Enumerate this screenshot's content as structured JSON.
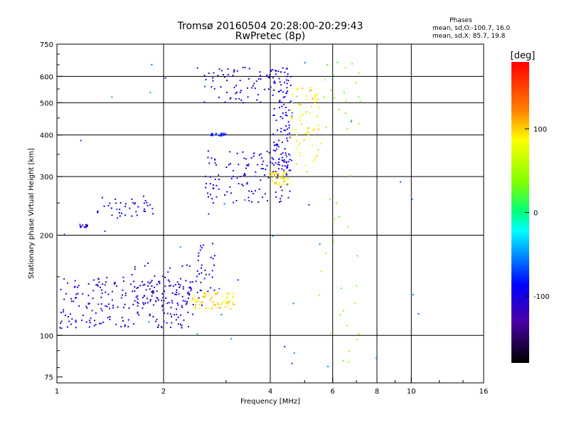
{
  "chart_data": {
    "type": "scatter",
    "title": "Tromsø 20160504 20:28:00-20:29:43",
    "subtitle": "RwPretec (8p)",
    "xlabel": "Frequency [MHz]",
    "ylabel": "Stationary phase Virtual Height [km]",
    "x_scale": "log",
    "y_scale": "log",
    "xlim": [
      1,
      16
    ],
    "ylim": [
      72,
      750
    ],
    "x_ticks": [
      {
        "v": 1,
        "label": "1"
      },
      {
        "v": 2,
        "label": "2"
      },
      {
        "v": 4,
        "label": "4"
      },
      {
        "v": 6,
        "label": "6"
      },
      {
        "v": 8,
        "label": "8"
      },
      {
        "v": 10,
        "label": "10"
      },
      {
        "v": 16,
        "label": "16"
      }
    ],
    "x_grid": [
      2,
      4,
      6,
      8,
      10
    ],
    "y_ticks": [
      {
        "v": 75,
        "label": "75"
      },
      {
        "v": 100,
        "label": "100"
      },
      {
        "v": 200,
        "label": "200"
      },
      {
        "v": 300,
        "label": "300"
      },
      {
        "v": 400,
        "label": "400"
      },
      {
        "v": 500,
        "label": "500"
      },
      {
        "v": 600,
        "label": "600"
      },
      {
        "v": 750,
        "label": "750"
      }
    ],
    "y_grid": [
      100,
      200,
      300,
      400,
      500,
      600
    ],
    "grid": true,
    "phases_legend": {
      "heading": "Phases",
      "line_o": "mean, sd,O:-100.7, 16.0",
      "line_x": "mean, sd,X:  85.7, 19.8"
    },
    "colorbar": {
      "label": "[deg]",
      "min": -180,
      "max": 180,
      "ticks": [
        {
          "v": 100,
          "label": "100"
        },
        {
          "v": 0,
          "label": "0"
        },
        {
          "v": -100,
          "label": "-100"
        }
      ]
    },
    "groups": [
      {
        "f_range": [
          1.15,
          1.22
        ],
        "h_range": [
          210,
          216
        ],
        "phase": -110,
        "n": 14
      },
      {
        "f_range": [
          1.3,
          1.9
        ],
        "h_range": [
          225,
          262
        ],
        "phase": -105,
        "n": 40
      },
      {
        "f_range": [
          1.02,
          2.4
        ],
        "h_range": [
          105,
          150
        ],
        "phase": -110,
        "n": 220
      },
      {
        "f_range": [
          1.6,
          2.6
        ],
        "h_range": [
          115,
          165
        ],
        "phase": -105,
        "n": 70
      },
      {
        "f_range": [
          2.4,
          3.2
        ],
        "h_range": [
          120,
          135
        ],
        "phase": 95,
        "n": 70
      },
      {
        "f_range": [
          2.5,
          2.8
        ],
        "h_range": [
          135,
          190
        ],
        "phase": -100,
        "n": 25
      },
      {
        "f_range": [
          2.6,
          4.4
        ],
        "h_range": [
          500,
          640
        ],
        "phase": -105,
        "n": 70
      },
      {
        "f_range": [
          2.7,
          3.0
        ],
        "h_range": [
          398,
          405
        ],
        "phase": -80,
        "n": 25
      },
      {
        "f_range": [
          2.6,
          4.6
        ],
        "h_range": [
          250,
          360
        ],
        "phase": -105,
        "n": 120
      },
      {
        "f_range": [
          4.05,
          4.6
        ],
        "h_range": [
          310,
          640
        ],
        "phase": -100,
        "n": 110
      },
      {
        "f_range": [
          4.0,
          4.5
        ],
        "h_range": [
          280,
          310
        ],
        "phase": 90,
        "n": 40
      },
      {
        "f_range": [
          4.5,
          5.5
        ],
        "h_range": [
          310,
          560
        ],
        "phase": 90,
        "n": 70
      },
      {
        "f_range": [
          5.5,
          7.2
        ],
        "h_range": [
          80,
          700
        ],
        "phase": 40,
        "n": 45
      },
      {
        "f_range": [
          1.0,
          11.0
        ],
        "h_range": [
          80,
          700
        ],
        "phase": -60,
        "n": 40
      }
    ]
  }
}
